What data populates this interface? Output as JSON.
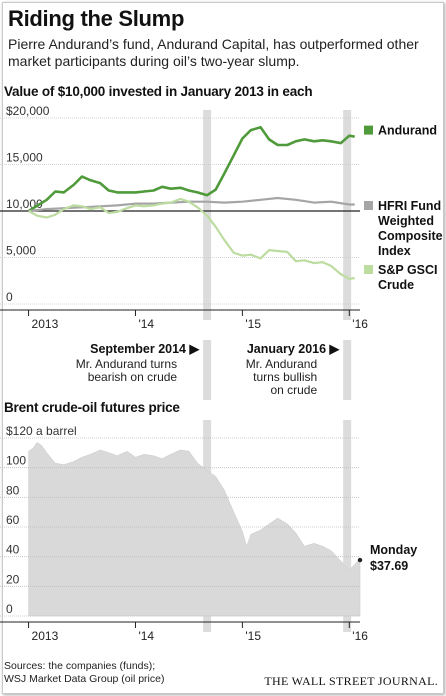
{
  "title": "Riding the Slump",
  "subtitle": "Pierre Andurand’s fund, Andurand Capital, has outperformed other market participants during oil’s two-year slump.",
  "footer": {
    "sources_line1": "Sources: the companies (funds);",
    "sources_line2": "WSJ Market Data Group (oil price)",
    "publisher": "THE WALL STREET JOURNAL."
  },
  "annotations": [
    {
      "date_label": "September 2014 ▶",
      "lines": [
        "Mr. Andurand turns",
        "bearish on crude"
      ],
      "x": 2014.67
    },
    {
      "date_label": "January 2016 ▶",
      "lines": [
        "Mr. Andurand",
        "turns bullish",
        "on crude"
      ],
      "x": 2015.98
    }
  ],
  "colors": {
    "andurand": "#4f9a3a",
    "hfri": "#a5a5a5",
    "gsci": "#bcdca0",
    "area": "#d9d9d9",
    "shade": "#dcdcdc"
  },
  "chart_data": [
    {
      "type": "line",
      "title": "Value of $10,000 invested in January 2013 in each",
      "xlim": [
        2012.92,
        2016.1
      ],
      "ylim": [
        0,
        20000
      ],
      "yticks": [
        0,
        5000,
        10000,
        15000,
        20000
      ],
      "ytick_labels": [
        "0",
        "5,000",
        "10,000",
        "15,000",
        "$20,000"
      ],
      "xtick_labels": [
        "2013",
        "'14",
        "'15",
        "'16"
      ],
      "xtick_values": [
        2013.0,
        2014.0,
        2015.0,
        2016.0
      ],
      "baseline": 10000,
      "grid": true,
      "legend": "right",
      "series": [
        {
          "name": "Andurand",
          "color_key": "andurand",
          "x": [
            2013.0,
            2013.17,
            2013.25,
            2013.33,
            2013.42,
            2013.5,
            2013.58,
            2013.67,
            2013.75,
            2013.83,
            2013.92,
            2014.0,
            2014.08,
            2014.17,
            2014.25,
            2014.33,
            2014.42,
            2014.5,
            2014.58,
            2014.67,
            2014.75,
            2014.83,
            2014.92,
            2015.0,
            2015.08,
            2015.17,
            2015.25,
            2015.33,
            2015.42,
            2015.5,
            2015.58,
            2015.67,
            2015.75,
            2015.83,
            2015.92,
            2016.0,
            2016.05
          ],
          "y": [
            10000,
            11200,
            12100,
            12000,
            12800,
            13700,
            13300,
            13000,
            12200,
            12000,
            12000,
            12000,
            12100,
            12200,
            12600,
            12400,
            12500,
            12200,
            12000,
            11700,
            12300,
            14000,
            16000,
            17800,
            18700,
            19000,
            17700,
            17100,
            17100,
            17500,
            17700,
            17500,
            17600,
            17500,
            17300,
            18100,
            18000
          ]
        },
        {
          "name": "HFRI Fund Weighted Composite Index",
          "color_key": "hfri",
          "x": [
            2013.0,
            2013.17,
            2013.33,
            2013.5,
            2013.67,
            2013.83,
            2014.0,
            2014.17,
            2014.33,
            2014.5,
            2014.67,
            2014.83,
            2015.0,
            2015.17,
            2015.33,
            2015.5,
            2015.67,
            2015.83,
            2016.0,
            2016.05
          ],
          "y": [
            10000,
            10200,
            10300,
            10400,
            10500,
            10600,
            10800,
            10800,
            10900,
            11000,
            11000,
            10900,
            11000,
            11200,
            11400,
            11200,
            10900,
            11000,
            10700,
            10700
          ]
        },
        {
          "name": "S&P GSCI Crude",
          "color_key": "gsci",
          "x": [
            2013.0,
            2013.08,
            2013.17,
            2013.25,
            2013.33,
            2013.42,
            2013.5,
            2013.58,
            2013.67,
            2013.75,
            2013.83,
            2013.92,
            2014.0,
            2014.08,
            2014.17,
            2014.25,
            2014.33,
            2014.42,
            2014.5,
            2014.58,
            2014.67,
            2014.75,
            2014.83,
            2014.92,
            2015.0,
            2015.08,
            2015.17,
            2015.25,
            2015.33,
            2015.42,
            2015.5,
            2015.58,
            2015.67,
            2015.75,
            2015.83,
            2015.92,
            2016.0,
            2016.05
          ],
          "y": [
            10000,
            9500,
            9300,
            9600,
            10200,
            10600,
            10500,
            10200,
            10400,
            9800,
            9900,
            10300,
            10600,
            10500,
            10600,
            10800,
            10900,
            11300,
            11000,
            10400,
            9500,
            8300,
            6900,
            5500,
            5200,
            5300,
            4900,
            5800,
            5700,
            5600,
            4600,
            4700,
            4400,
            4500,
            4100,
            3200,
            2700,
            2800
          ]
        }
      ]
    },
    {
      "type": "area",
      "title": "Brent crude-oil futures price",
      "xlim": [
        2012.92,
        2016.1
      ],
      "ylim": [
        0,
        120
      ],
      "yticks": [
        0,
        20,
        40,
        60,
        80,
        100,
        120
      ],
      "ytick_labels": [
        "0",
        "20",
        "40",
        "60",
        "80",
        "100",
        "$120 a barrel"
      ],
      "xtick_labels": [
        "2013",
        "'14",
        "'15",
        "'16"
      ],
      "xtick_values": [
        2013.0,
        2014.0,
        2015.0,
        2016.0
      ],
      "grid": true,
      "series": [
        {
          "name": "Brent",
          "color_key": "area",
          "x": [
            2013.0,
            2013.04,
            2013.08,
            2013.12,
            2013.17,
            2013.25,
            2013.33,
            2013.42,
            2013.5,
            2013.58,
            2013.67,
            2013.75,
            2013.83,
            2013.92,
            2014.0,
            2014.08,
            2014.17,
            2014.25,
            2014.33,
            2014.42,
            2014.5,
            2014.58,
            2014.67,
            2014.75,
            2014.83,
            2014.92,
            2015.0,
            2015.04,
            2015.08,
            2015.17,
            2015.25,
            2015.33,
            2015.42,
            2015.5,
            2015.58,
            2015.67,
            2015.75,
            2015.83,
            2015.92,
            2016.0,
            2016.04,
            2016.08,
            2016.1
          ],
          "y": [
            111,
            113,
            117,
            115,
            110,
            103,
            102,
            104,
            107,
            109,
            112,
            110,
            108,
            111,
            107,
            109,
            108,
            106,
            109,
            112,
            111,
            103,
            98,
            94,
            85,
            70,
            57,
            47,
            55,
            58,
            62,
            66,
            62,
            56,
            47,
            49,
            47,
            44,
            37,
            31,
            34,
            37,
            37.69
          ]
        }
      ],
      "last_value_label": "Monday",
      "last_value": "$37.69"
    }
  ]
}
